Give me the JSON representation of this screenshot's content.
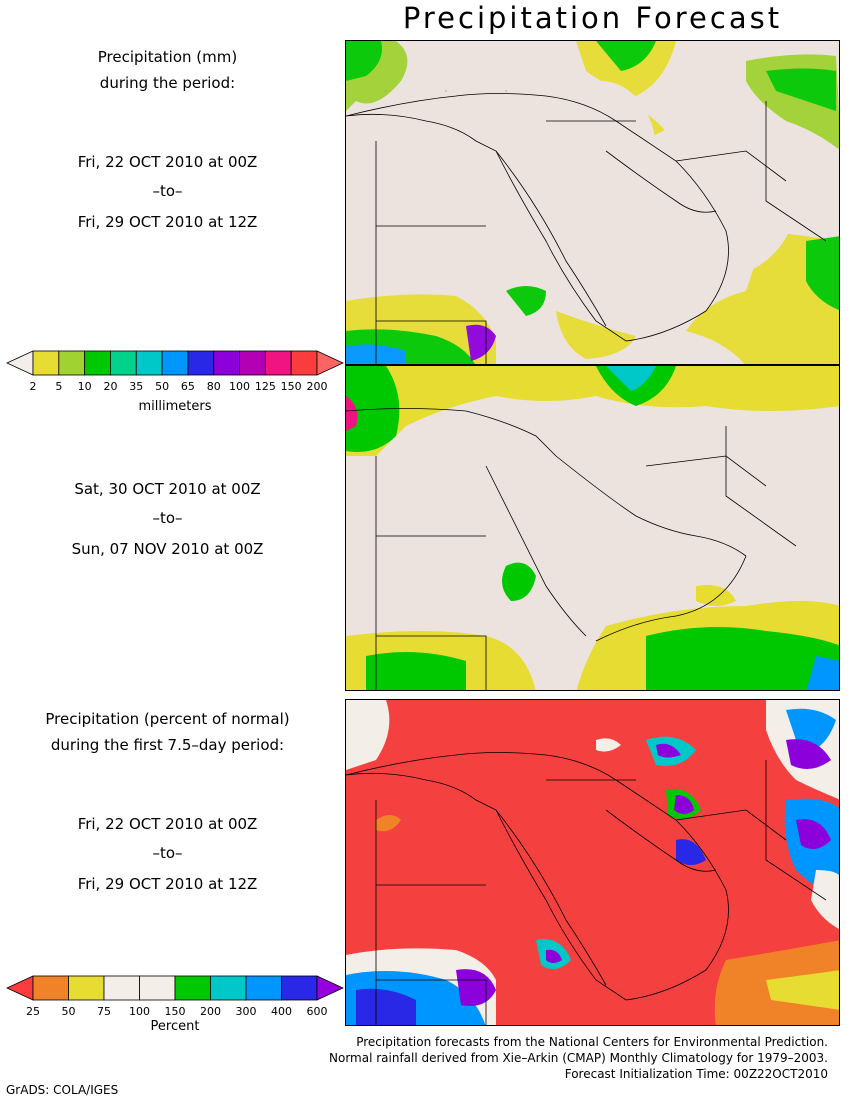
{
  "title": "Precipitation Forecast",
  "panel1": {
    "heading_line1": "Precipitation (mm)",
    "heading_line2": "during the period:",
    "start": "Fri, 22 OCT 2010 at 00Z",
    "to": "–to–",
    "end": "Fri, 29 OCT 2010 at 12Z"
  },
  "panel2": {
    "start": "Sat, 30 OCT 2010 at 00Z",
    "to": "–to–",
    "end": "Sun, 07 NOV 2010 at 00Z"
  },
  "panel3": {
    "heading_line1": "Precipitation (percent of normal)",
    "heading_line2": "during the first 7.5–day period:",
    "start": "Fri, 22 OCT 2010 at 00Z",
    "to": "–to–",
    "end": "Fri, 29 OCT 2010 at 12Z"
  },
  "colorbar_mm": {
    "unit": "millimeters",
    "labels": [
      "2",
      "5",
      "10",
      "20",
      "35",
      "50",
      "65",
      "80",
      "100",
      "125",
      "150",
      "200"
    ],
    "colors": [
      "#f3eee8",
      "#e6dc32",
      "#a0d232",
      "#00c800",
      "#00d28c",
      "#00c8c8",
      "#0096ff",
      "#2828e6",
      "#8c00dc",
      "#b400b4",
      "#f01482",
      "#fa3c3c",
      "#ff6464"
    ]
  },
  "colorbar_pct": {
    "unit": "Percent",
    "labels": [
      "25",
      "50",
      "75",
      "100",
      "150",
      "200",
      "300",
      "400",
      "600"
    ],
    "colors": [
      "#fa3c3c",
      "#f08228",
      "#e6dc32",
      "#f3eee8",
      "#f3eee8",
      "#00c800",
      "#00c8c8",
      "#0096ff",
      "#2828e6",
      "#9600dc"
    ]
  },
  "footer": {
    "line1": "Precipitation forecasts from the National Centers for Environmental Prediction.",
    "line2": "Normal rainfall derived from Xie–Arkin (CMAP) Monthly Climatology for 1979–2003.",
    "line3": "Forecast Initialization Time: 00Z22OCT2010"
  },
  "credit": "GrADS: COLA/IGES",
  "map_colors": {
    "land_bg": "#ede3de",
    "pct_bg": "#f54040",
    "coast": "#000000"
  }
}
